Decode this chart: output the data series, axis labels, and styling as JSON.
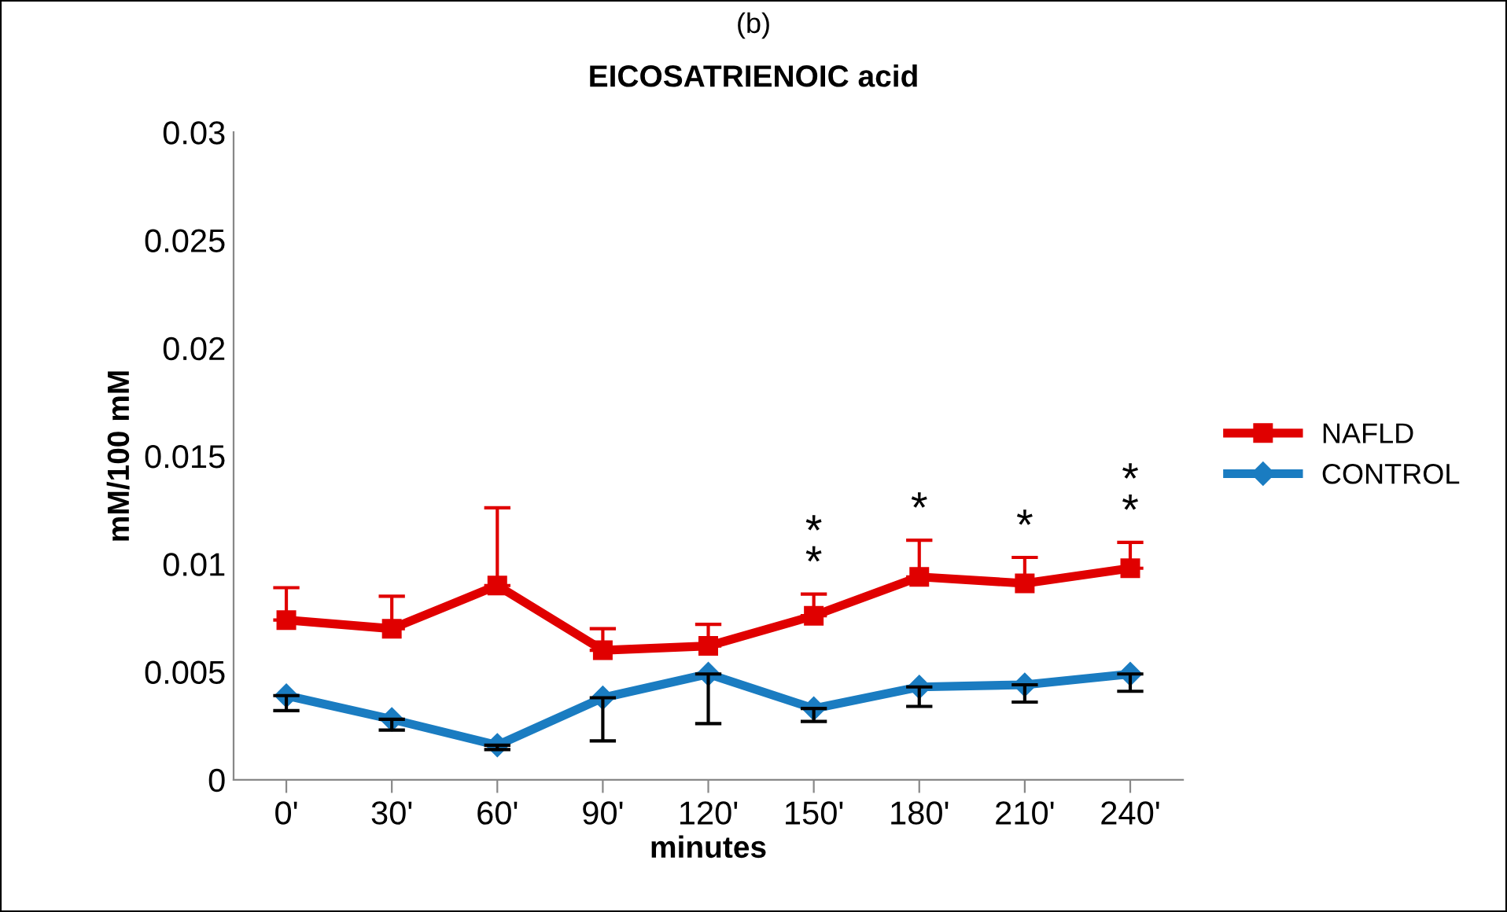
{
  "chart_data": {
    "type": "line",
    "title": "EICOSATRIENOIC acid",
    "xlabel": "minutes",
    "ylabel": "mM/100 mM",
    "categories": [
      "0'",
      "30'",
      "60'",
      "90'",
      "120'",
      "150'",
      "180'",
      "210'",
      "240'"
    ],
    "series": [
      {
        "name": "NAFLD",
        "color": "#e00000",
        "marker": "square",
        "values": [
          0.0074,
          0.007,
          0.009,
          0.006,
          0.0062,
          0.0076,
          0.0094,
          0.0091,
          0.0098
        ],
        "errors": [
          [
            0.0074,
            0.0089
          ],
          [
            0.007,
            0.0085
          ],
          [
            0.009,
            0.0126
          ],
          [
            0.006,
            0.007
          ],
          [
            0.0062,
            0.0072
          ],
          [
            0.0076,
            0.0086
          ],
          [
            0.0094,
            0.0111
          ],
          [
            0.0091,
            0.0103
          ],
          [
            0.0098,
            0.011
          ]
        ]
      },
      {
        "name": "CONTROL",
        "color": "#1a7cc1",
        "marker": "diamond",
        "values": [
          0.0039,
          0.0028,
          0.0016,
          0.0038,
          0.0049,
          0.0033,
          0.0043,
          0.0044,
          0.0049
        ],
        "errors": [
          [
            0.0032,
            0.0039
          ],
          [
            0.0023,
            0.0028
          ],
          [
            0.0014,
            0.0016
          ],
          [
            0.0018,
            0.0038
          ],
          [
            0.0026,
            0.0049
          ],
          [
            0.0027,
            0.0033
          ],
          [
            0.0034,
            0.0043
          ],
          [
            0.0036,
            0.0044
          ],
          [
            0.0041,
            0.0049
          ]
        ]
      }
    ],
    "ylim": [
      0,
      0.03
    ],
    "yticks": [
      0,
      0.005,
      0.01,
      0.015,
      0.02,
      0.025,
      0.03
    ],
    "annotations": [
      "(b)",
      "*\n*",
      "*",
      "*",
      "*\n*"
    ],
    "grid": false,
    "legend": "right",
    "line_style": "solid"
  }
}
